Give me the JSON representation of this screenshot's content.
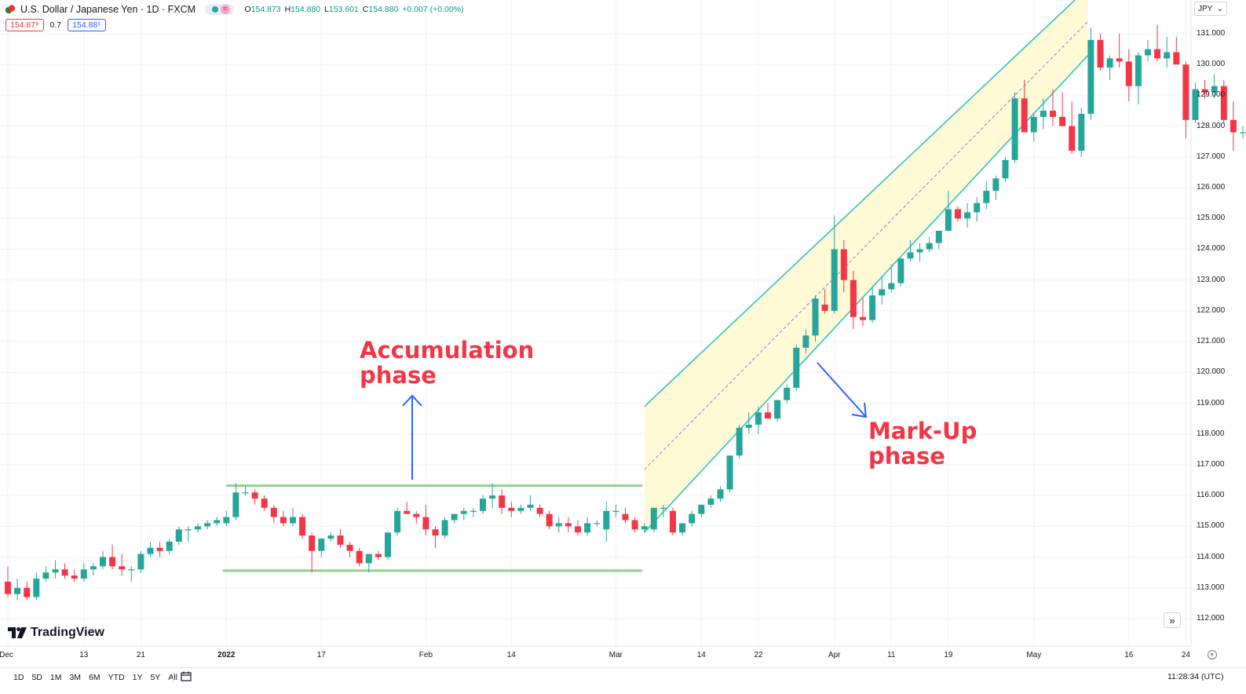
{
  "header": {
    "symbol": "U.S. Dollar / Japanese Yen · 1D · FXCM",
    "approx_badge": "≈",
    "ohlc": {
      "o_label": "O",
      "o": "154.873",
      "h_label": "H",
      "h": "154.880",
      "l_label": "L",
      "l": "153.601",
      "c_label": "C",
      "c": "154.880",
      "change": "+0.007 (+0.00%)"
    },
    "bid": "154.87⁸",
    "spread": "0.7",
    "ask": "154.88⁵",
    "currency": "JPY",
    "currency_chevron": "⌄"
  },
  "colors": {
    "up": "#26a69a",
    "down": "#f23645",
    "channel_line": "#2ec4c0",
    "channel_fill": "#fff9d6",
    "range_line": "#8fd08f",
    "arrow": "#2962ff",
    "annotation": "#f23645"
  },
  "chart_data": {
    "type": "candlestick",
    "y_axis": {
      "min": 111.6,
      "max": 131.3,
      "ticks": [
        "131.000",
        "130.000",
        "129.000",
        "128.000",
        "127.000",
        "126.000",
        "125.000",
        "124.000",
        "123.000",
        "122.000",
        "121.000",
        "120.000",
        "119.000",
        "118.000",
        "117.000",
        "116.000",
        "115.000",
        "114.000",
        "113.000",
        "112.000"
      ],
      "tick_values": [
        131,
        130,
        129,
        128,
        127,
        126,
        125,
        124,
        123,
        122,
        121,
        120,
        119,
        118,
        117,
        116,
        115,
        114,
        113,
        112
      ]
    },
    "x_axis": {
      "ticks": [
        {
          "label": "Dec",
          "i": 0
        },
        {
          "label": "13",
          "i": 8
        },
        {
          "label": "21",
          "i": 14
        },
        {
          "label": "2022",
          "i": 23,
          "bold": true
        },
        {
          "label": "17",
          "i": 33
        },
        {
          "label": "Feb",
          "i": 44
        },
        {
          "label": "14",
          "i": 53
        },
        {
          "label": "Mar",
          "i": 64
        },
        {
          "label": "14",
          "i": 73
        },
        {
          "label": "22",
          "i": 79
        },
        {
          "label": "Apr",
          "i": 87
        },
        {
          "label": "11",
          "i": 93
        },
        {
          "label": "19",
          "i": 99
        },
        {
          "label": "May",
          "i": 108
        },
        {
          "label": "16",
          "i": 118
        },
        {
          "label": "24",
          "i": 124
        }
      ]
    },
    "candles": [
      [
        113.2,
        113.7,
        112.7,
        112.8
      ],
      [
        112.8,
        113.3,
        112.6,
        113.0
      ],
      [
        113.0,
        113.2,
        112.6,
        112.7
      ],
      [
        112.7,
        113.5,
        112.6,
        113.3
      ],
      [
        113.3,
        113.7,
        113.2,
        113.5
      ],
      [
        113.5,
        113.9,
        113.3,
        113.6
      ],
      [
        113.6,
        113.8,
        113.3,
        113.4
      ],
      [
        113.4,
        113.6,
        113.2,
        113.3
      ],
      [
        113.3,
        113.8,
        113.2,
        113.6
      ],
      [
        113.6,
        113.8,
        113.4,
        113.7
      ],
      [
        113.7,
        114.2,
        113.6,
        114.0
      ],
      [
        114.0,
        114.4,
        113.6,
        113.7
      ],
      [
        113.7,
        114.1,
        113.4,
        113.6
      ],
      [
        113.6,
        113.7,
        113.2,
        113.6
      ],
      [
        113.6,
        114.2,
        113.5,
        114.1
      ],
      [
        114.1,
        114.5,
        114.0,
        114.3
      ],
      [
        114.3,
        114.5,
        114.0,
        114.2
      ],
      [
        114.2,
        114.6,
        114.1,
        114.5
      ],
      [
        114.5,
        115.0,
        114.4,
        114.9
      ],
      [
        114.9,
        115.0,
        114.5,
        114.9
      ],
      [
        114.9,
        115.1,
        114.8,
        115.0
      ],
      [
        115.0,
        115.2,
        114.9,
        115.1
      ],
      [
        115.1,
        115.3,
        115.0,
        115.2
      ],
      [
        115.1,
        115.5,
        115.0,
        115.3
      ],
      [
        115.3,
        116.4,
        115.2,
        116.1
      ],
      [
        116.1,
        116.3,
        116.0,
        116.1
      ],
      [
        116.1,
        116.2,
        115.7,
        115.9
      ],
      [
        115.9,
        116.0,
        115.5,
        115.6
      ],
      [
        115.6,
        115.7,
        115.1,
        115.3
      ],
      [
        115.3,
        115.5,
        115.0,
        115.1
      ],
      [
        115.1,
        115.6,
        115.0,
        115.3
      ],
      [
        115.3,
        115.4,
        114.6,
        114.7
      ],
      [
        114.7,
        114.8,
        113.5,
        114.2
      ],
      [
        114.2,
        114.5,
        114.0,
        114.6
      ],
      [
        114.6,
        114.8,
        114.5,
        114.7
      ],
      [
        114.7,
        114.9,
        114.3,
        114.4
      ],
      [
        114.4,
        114.5,
        114.0,
        114.2
      ],
      [
        114.2,
        114.3,
        113.7,
        113.8
      ],
      [
        113.8,
        114.1,
        113.5,
        114.1
      ],
      [
        114.1,
        114.2,
        113.9,
        114.0
      ],
      [
        114.0,
        114.8,
        113.9,
        114.8
      ],
      [
        114.8,
        115.6,
        114.7,
        115.5
      ],
      [
        115.5,
        115.8,
        115.4,
        115.4
      ],
      [
        115.4,
        115.5,
        115.1,
        115.3
      ],
      [
        115.3,
        115.7,
        114.7,
        114.9
      ],
      [
        114.9,
        115.0,
        114.3,
        114.7
      ],
      [
        114.7,
        115.3,
        114.6,
        115.2
      ],
      [
        115.2,
        115.3,
        115.1,
        115.4
      ],
      [
        115.4,
        115.6,
        115.2,
        115.5
      ],
      [
        115.5,
        115.6,
        115.3,
        115.5
      ],
      [
        115.5,
        116.0,
        115.4,
        115.9
      ],
      [
        115.9,
        116.4,
        115.6,
        116.0
      ],
      [
        116.0,
        116.2,
        115.4,
        115.6
      ],
      [
        115.6,
        115.8,
        115.3,
        115.5
      ],
      [
        115.5,
        115.7,
        115.4,
        115.6
      ],
      [
        115.6,
        116.0,
        115.5,
        115.7
      ],
      [
        115.6,
        115.7,
        115.3,
        115.4
      ],
      [
        115.4,
        115.5,
        114.9,
        115.0
      ],
      [
        115.0,
        115.3,
        114.8,
        115.1
      ],
      [
        115.1,
        115.3,
        114.8,
        115.0
      ],
      [
        115.0,
        115.2,
        114.7,
        114.8
      ],
      [
        114.8,
        115.3,
        114.7,
        115.1
      ],
      [
        115.1,
        115.2,
        115.0,
        115.1
      ],
      [
        114.9,
        115.8,
        114.5,
        115.5
      ],
      [
        115.5,
        115.7,
        115.3,
        115.5
      ],
      [
        115.4,
        115.6,
        115.1,
        115.2
      ],
      [
        115.2,
        115.3,
        114.8,
        114.9
      ],
      [
        114.9,
        115.1,
        114.8,
        115.0
      ],
      [
        114.9,
        115.6,
        114.8,
        115.6
      ],
      [
        115.6,
        115.7,
        115.3,
        115.6
      ],
      [
        115.5,
        115.6,
        114.7,
        114.8
      ],
      [
        114.8,
        115.1,
        114.7,
        115.1
      ],
      [
        115.1,
        115.5,
        115.0,
        115.4
      ],
      [
        115.4,
        115.7,
        115.3,
        115.7
      ],
      [
        115.7,
        116.0,
        115.6,
        115.9
      ],
      [
        115.9,
        116.3,
        115.8,
        116.2
      ],
      [
        116.2,
        117.3,
        116.1,
        117.3
      ],
      [
        117.3,
        118.3,
        117.2,
        118.2
      ],
      [
        118.2,
        118.7,
        118.0,
        118.3
      ],
      [
        118.3,
        118.9,
        118.0,
        118.7
      ],
      [
        118.7,
        119.0,
        118.5,
        118.5
      ],
      [
        118.5,
        119.1,
        118.4,
        119.1
      ],
      [
        119.1,
        119.6,
        119.0,
        119.5
      ],
      [
        119.5,
        120.9,
        119.4,
        120.8
      ],
      [
        120.8,
        121.4,
        120.6,
        121.2
      ],
      [
        121.2,
        122.5,
        121.0,
        122.4
      ],
      [
        122.2,
        122.7,
        121.9,
        122.0
      ],
      [
        122.0,
        125.1,
        121.9,
        124.0
      ],
      [
        124.0,
        124.3,
        122.6,
        123.0
      ],
      [
        123.0,
        123.3,
        121.4,
        121.8
      ],
      [
        121.8,
        122.4,
        121.5,
        121.7
      ],
      [
        121.7,
        122.8,
        121.6,
        122.5
      ],
      [
        122.5,
        123.1,
        122.2,
        122.7
      ],
      [
        122.7,
        123.5,
        122.6,
        122.9
      ],
      [
        122.9,
        123.7,
        122.8,
        123.7
      ],
      [
        123.7,
        124.3,
        123.6,
        123.9
      ],
      [
        123.9,
        124.2,
        123.6,
        124.0
      ],
      [
        124.0,
        124.4,
        123.9,
        124.2
      ],
      [
        124.2,
        124.5,
        124.0,
        124.6
      ],
      [
        124.6,
        125.9,
        124.6,
        125.3
      ],
      [
        125.3,
        125.4,
        124.9,
        125.0
      ],
      [
        125.0,
        125.5,
        124.7,
        125.2
      ],
      [
        125.2,
        125.7,
        124.9,
        125.5
      ],
      [
        125.5,
        126.2,
        125.3,
        125.9
      ],
      [
        125.9,
        126.4,
        125.6,
        126.3
      ],
      [
        126.3,
        127.0,
        126.2,
        126.9
      ],
      [
        126.9,
        129.1,
        126.8,
        128.9
      ],
      [
        128.9,
        129.5,
        127.8,
        127.8
      ],
      [
        127.8,
        128.4,
        127.5,
        128.3
      ],
      [
        128.3,
        128.9,
        127.9,
        128.5
      ],
      [
        128.5,
        129.2,
        128.0,
        128.3
      ],
      [
        128.3,
        129.1,
        128.0,
        128.0
      ],
      [
        128.0,
        128.8,
        127.1,
        127.2
      ],
      [
        127.2,
        128.6,
        127.0,
        128.4
      ],
      [
        128.4,
        131.2,
        128.2,
        130.8
      ],
      [
        130.8,
        131.0,
        129.8,
        129.9
      ],
      [
        129.9,
        130.3,
        129.5,
        130.2
      ],
      [
        130.2,
        131.0,
        129.9,
        130.1
      ],
      [
        130.1,
        130.5,
        128.8,
        129.3
      ],
      [
        129.3,
        130.4,
        128.7,
        130.3
      ],
      [
        130.3,
        130.8,
        130.1,
        130.5
      ],
      [
        130.5,
        131.3,
        130.1,
        130.2
      ],
      [
        130.2,
        130.9,
        129.9,
        130.4
      ],
      [
        130.4,
        130.9,
        130.1,
        130.0
      ],
      [
        130.0,
        130.1,
        127.6,
        128.2
      ],
      [
        128.2,
        129.4,
        128.1,
        129.2
      ],
      [
        129.2,
        129.5,
        128.9,
        129.1
      ],
      [
        129.1,
        129.7,
        128.9,
        129.3
      ],
      [
        129.3,
        129.5,
        128.1,
        128.2
      ],
      [
        128.2,
        128.8,
        127.2,
        127.8
      ],
      [
        127.8,
        128.0,
        127.6,
        127.8
      ],
      [
        127.7,
        127.8,
        127.2,
        127.8
      ],
      [
        127.9,
        128.0,
        126.4,
        126.8
      ],
      [
        126.8,
        127.4,
        126.7,
        127.3
      ],
      [
        127.2,
        127.4,
        127.0,
        127.2
      ]
    ],
    "drawings": {
      "range_top": {
        "i1": 23,
        "i2": 66.8,
        "y": 116.32
      },
      "range_bottom": {
        "i1": 22.6,
        "i2": 66.8,
        "y": 113.56
      },
      "channel": {
        "i1": 67,
        "i2": 113.7,
        "upper_y1": 118.89,
        "upper_y2": 132.5,
        "lower_y1": 114.8,
        "lower_y2": 130.3
      }
    }
  },
  "annotations": {
    "accumulation_line1": "Accumulation",
    "accumulation_line2": "phase",
    "markup_line1": "Mark-Up",
    "markup_line2": "phase"
  },
  "branding": {
    "name": "TradingView"
  },
  "bottom": {
    "ranges": [
      "1D",
      "5D",
      "1M",
      "3M",
      "6M",
      "YTD",
      "1Y",
      "5Y",
      "All"
    ],
    "clock": "11:28:34 (UTC)",
    "expand_glyph": "»"
  }
}
